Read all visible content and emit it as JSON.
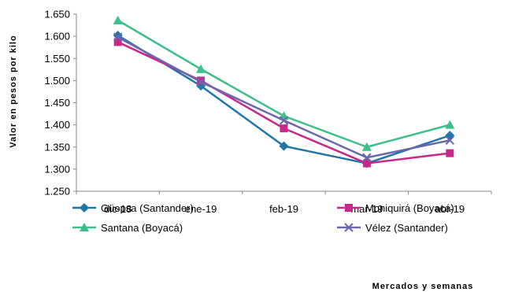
{
  "chart_data": {
    "type": "line",
    "categories": [
      "dic-18",
      "ene-19",
      "feb-19",
      "mar-19",
      "abr-19"
    ],
    "ylabel": "Valor en pesos por kilo",
    "xlabel": "Mercados y semanas",
    "ylim": [
      1250,
      1650
    ],
    "ytick_step": 50,
    "ytick_labels": [
      "1.250",
      "1.300",
      "1.350",
      "1.400",
      "1.450",
      "1.500",
      "1.550",
      "1.600",
      "1.650"
    ],
    "grid": false,
    "legend_position": "bottom",
    "series": [
      {
        "name": "Güepsa (Santander)",
        "color": "#1F77A8",
        "marker": "diamond",
        "values": [
          1602,
          1488,
          1352,
          1313,
          1376
        ]
      },
      {
        "name": "Moniquirá (Boyacá)",
        "color": "#C8288A",
        "marker": "square",
        "values": [
          1587,
          1500,
          1392,
          1313,
          1336
        ]
      },
      {
        "name": "Santana (Boyacá)",
        "color": "#3DBE8A",
        "marker": "triangle",
        "values": [
          1636,
          1526,
          1420,
          1350,
          1400
        ]
      },
      {
        "name": "Vélez (Santander)",
        "color": "#6A66B0",
        "marker": "x",
        "values": [
          1598,
          1497,
          1410,
          1326,
          1365
        ]
      }
    ]
  }
}
